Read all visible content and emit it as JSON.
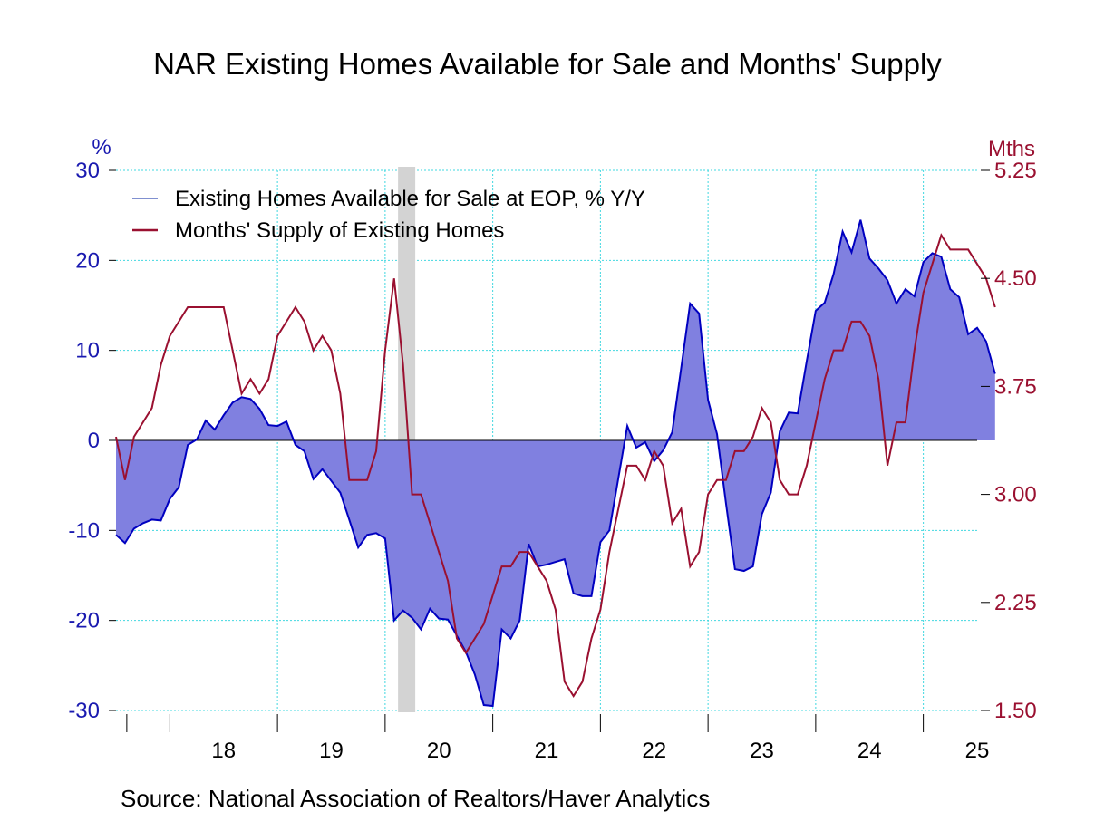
{
  "chart_data": {
    "type": "area",
    "title": "NAR Existing Homes Available for Sale and Months' Supply",
    "source": "Source:  National Association of Realtors/Haver Analytics",
    "left_axis": {
      "unit": "%",
      "min": -30,
      "max": 30,
      "ticks": [
        "30",
        "20",
        "10",
        "0",
        "-10",
        "-20",
        "-30"
      ],
      "color": "#1a1ab0"
    },
    "right_axis": {
      "unit": "Mths",
      "min": 1.5,
      "max": 5.25,
      "ticks": [
        "5.25",
        "4.50",
        "3.75",
        "3.00",
        "2.25",
        "1.50"
      ],
      "color": "#9a1030"
    },
    "x_axis": {
      "start": 2017.5,
      "end": 2025.5,
      "labels": [
        "18",
        "19",
        "20",
        "21",
        "22",
        "23",
        "24",
        "25"
      ]
    },
    "grid": true,
    "legend_position": "top-left",
    "recession_shading": {
      "start": 2020.12,
      "end": 2020.28,
      "color": "#d3d3d3"
    },
    "series": [
      {
        "name": "Existing Homes Available for Sale at EOP, % Y/Y",
        "axis": "left",
        "style": "filled-area",
        "line_color": "#0000c0",
        "fill_color": "#8080e0",
        "legend_color": "#8090d0",
        "start": 2017.5,
        "step_months": 1,
        "values": [
          -10.5,
          -11.4,
          -9.8,
          -9.2,
          -8.8,
          -8.9,
          -6.5,
          -5.2,
          -0.5,
          0.1,
          2.2,
          1.2,
          2.8,
          4.2,
          4.8,
          4.6,
          3.5,
          1.7,
          1.6,
          2.1,
          -0.5,
          -1.2,
          -4.3,
          -3.2,
          -4.5,
          -5.8,
          -8.8,
          -11.9,
          -10.5,
          -10.3,
          -10.9,
          -20.0,
          -18.9,
          -19.7,
          -21.0,
          -18.7,
          -19.8,
          -19.9,
          -21.7,
          -23.5,
          -26.0,
          -29.4,
          -29.5,
          -21.0,
          -22.0,
          -20.0,
          -11.5,
          -14.0,
          -13.8,
          -13.5,
          -13.2,
          -17.0,
          -17.3,
          -17.3,
          -11.3,
          -10.0,
          -4.2,
          1.6,
          -0.8,
          -0.2,
          -2.3,
          -1.1,
          0.9,
          8.0,
          15.2,
          14.1,
          4.5,
          0.7,
          -7.0,
          -14.3,
          -14.5,
          -14.0,
          -8.2,
          -5.8,
          1.0,
          3.1,
          3.0,
          8.8,
          14.4,
          15.3,
          18.5,
          23.2,
          20.9,
          24.5,
          20.2,
          19.1,
          17.8,
          15.2,
          16.8,
          16.0,
          19.8,
          20.8,
          20.4,
          16.8,
          15.9,
          11.8,
          12.5,
          11.0,
          7.4
        ]
      },
      {
        "name": "Months' Supply of Existing Homes",
        "axis": "right",
        "style": "line",
        "line_color": "#9a1030",
        "start": 2017.5,
        "step_months": 1,
        "values": [
          3.4,
          3.1,
          3.4,
          3.5,
          3.6,
          3.9,
          4.1,
          4.2,
          4.3,
          4.3,
          4.3,
          4.3,
          4.3,
          4.0,
          3.7,
          3.8,
          3.7,
          3.8,
          4.1,
          4.2,
          4.3,
          4.2,
          4.0,
          4.1,
          4.0,
          3.7,
          3.1,
          3.1,
          3.1,
          3.3,
          4.0,
          4.5,
          3.9,
          3.0,
          3.0,
          2.8,
          2.6,
          2.4,
          2.0,
          1.9,
          2.0,
          2.1,
          2.3,
          2.5,
          2.5,
          2.6,
          2.6,
          2.5,
          2.4,
          2.2,
          1.7,
          1.6,
          1.7,
          2.0,
          2.2,
          2.6,
          2.9,
          3.2,
          3.2,
          3.1,
          3.3,
          3.2,
          2.8,
          2.9,
          2.5,
          2.6,
          3.0,
          3.1,
          3.1,
          3.3,
          3.3,
          3.4,
          3.6,
          3.5,
          3.1,
          3.0,
          3.0,
          3.2,
          3.5,
          3.8,
          4.0,
          4.0,
          4.2,
          4.2,
          4.1,
          3.8,
          3.2,
          3.5,
          3.5,
          4.0,
          4.4,
          4.6,
          4.8,
          4.7,
          4.7,
          4.7,
          4.6,
          4.5,
          4.3
        ]
      }
    ]
  }
}
